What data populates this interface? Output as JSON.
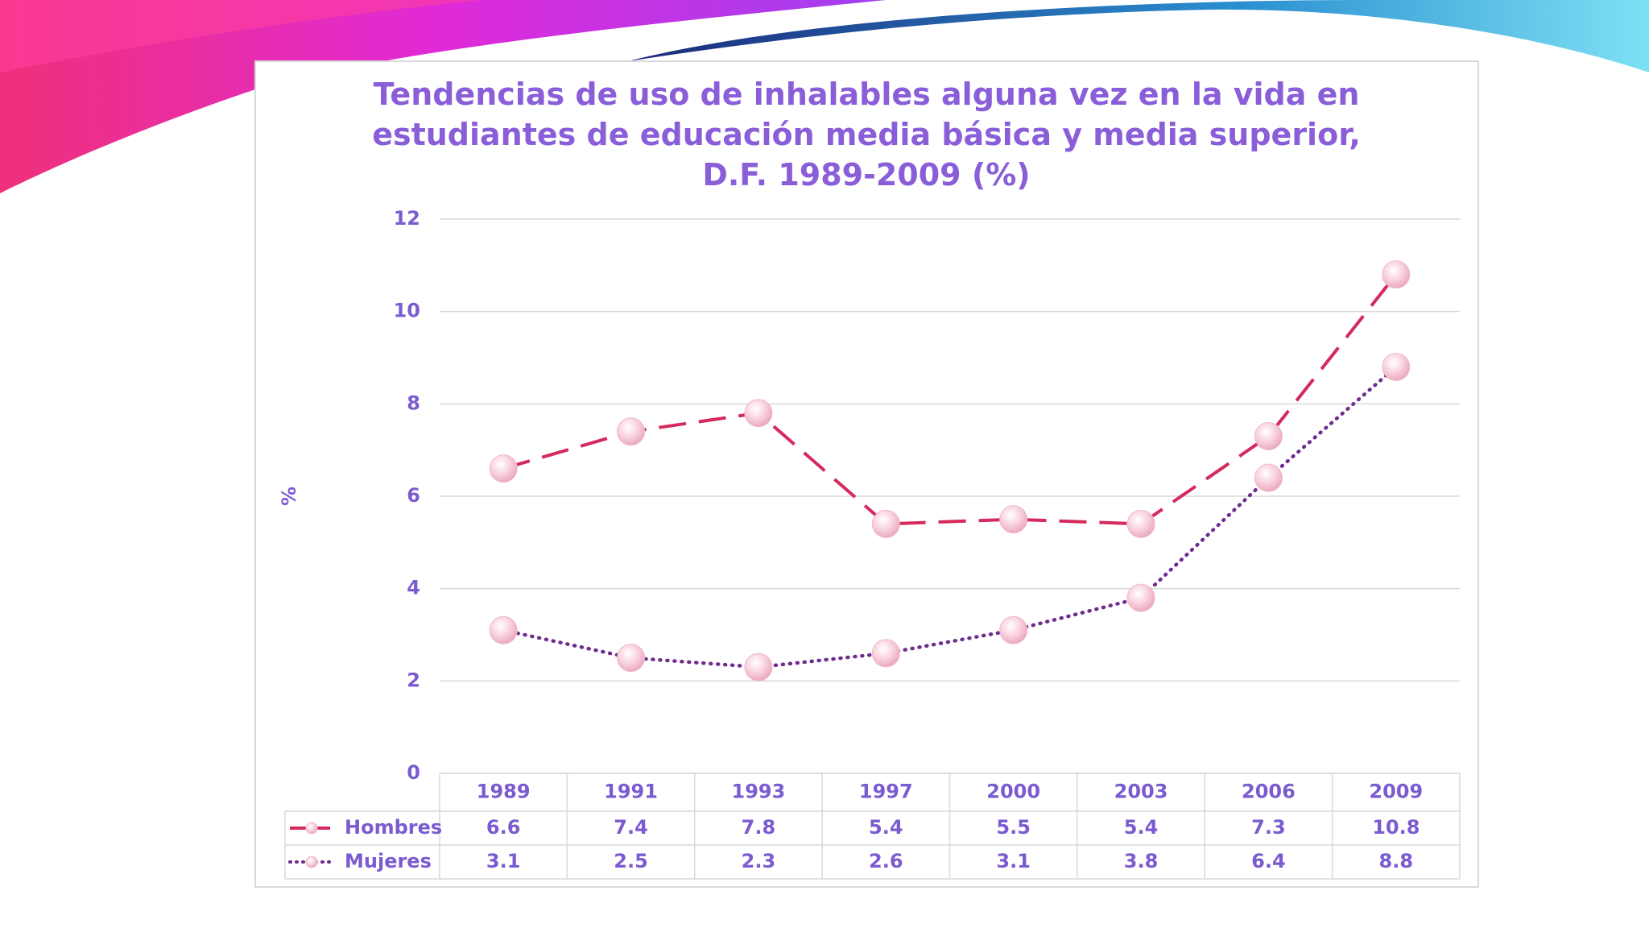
{
  "chart_data": {
    "type": "line",
    "title": "Tendencias de uso de inhalables alguna vez en la vida en estudiantes de educación media básica y media superior, D.F. 1989-2009 (%)",
    "y_label": "%",
    "categories": [
      "1989",
      "1991",
      "1993",
      "1997",
      "2000",
      "2003",
      "2006",
      "2009"
    ],
    "series": [
      {
        "name": "Hombres",
        "color": "#d42a5c",
        "style": "dashed",
        "values": [
          6.6,
          7.4,
          7.8,
          5.4,
          5.5,
          5.4,
          7.3,
          10.8
        ]
      },
      {
        "name": "Mujeres",
        "color": "#6e2a8e",
        "style": "dotted",
        "values": [
          3.1,
          2.5,
          2.3,
          2.6,
          3.1,
          3.8,
          6.4,
          8.8
        ]
      }
    ],
    "ylim": [
      0,
      12
    ],
    "yticks": [
      0,
      2,
      4,
      6,
      8,
      10,
      12
    ],
    "grid": true,
    "data_table": true
  }
}
